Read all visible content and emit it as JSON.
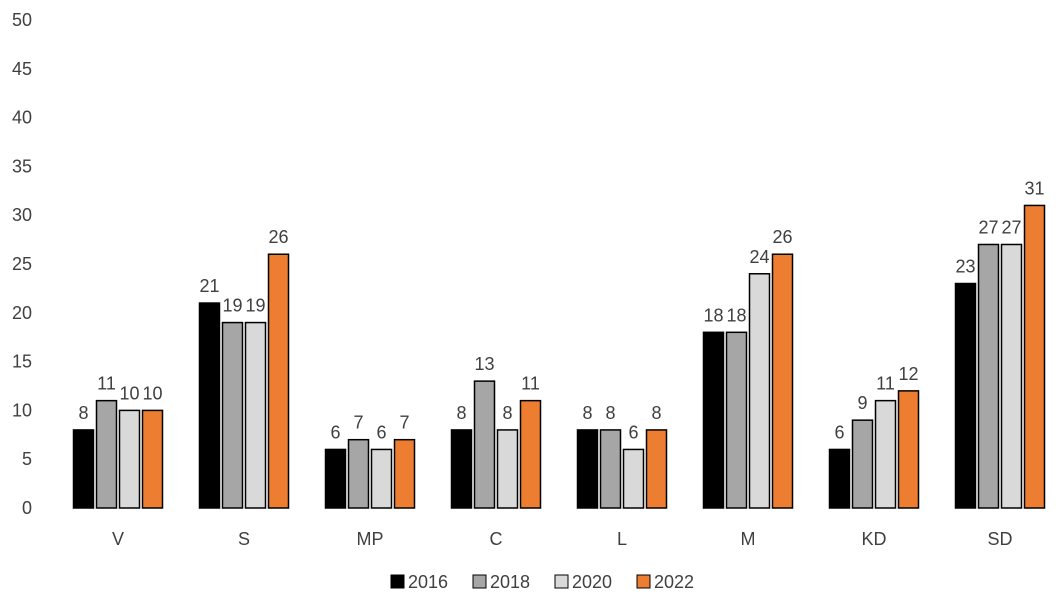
{
  "chart_data": {
    "type": "bar",
    "categories": [
      "V",
      "S",
      "MP",
      "C",
      "L",
      "M",
      "KD",
      "SD"
    ],
    "series": [
      {
        "name": "2016",
        "color": "#000000",
        "values": [
          8,
          21,
          6,
          8,
          8,
          18,
          6,
          23
        ]
      },
      {
        "name": "2018",
        "color": "#a6a6a6",
        "values": [
          11,
          19,
          7,
          13,
          8,
          18,
          9,
          27
        ]
      },
      {
        "name": "2020",
        "color": "#d9d9d9",
        "values": [
          10,
          19,
          6,
          8,
          6,
          24,
          11,
          27
        ]
      },
      {
        "name": "2022",
        "color": "#ed7d31",
        "values": [
          10,
          26,
          7,
          11,
          8,
          26,
          12,
          31
        ]
      }
    ],
    "ylim": [
      0,
      50
    ],
    "yticks": [
      0,
      5,
      10,
      15,
      20,
      25,
      30,
      35,
      40,
      45,
      50
    ],
    "title": "",
    "xlabel": "",
    "ylabel": "",
    "grid": false,
    "legend_position": "bottom",
    "data_labels": true,
    "bar_outline_color": "#000000",
    "text_color": "#404040"
  }
}
